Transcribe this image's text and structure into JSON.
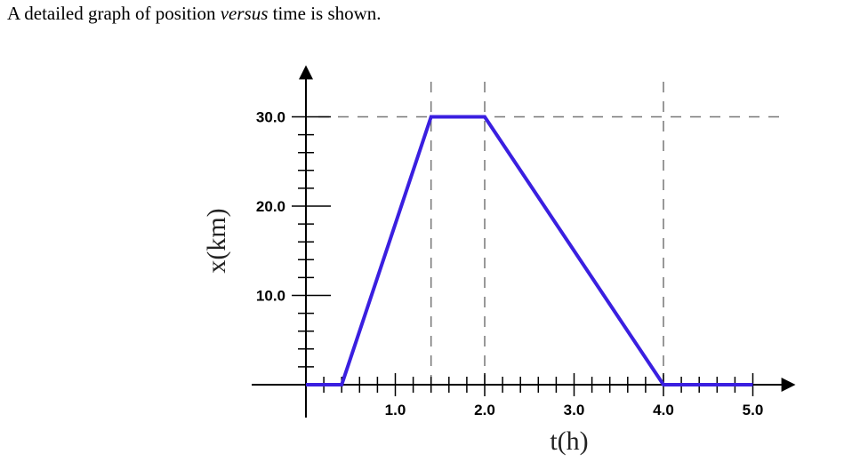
{
  "caption": {
    "text_before": "A detailed graph of position ",
    "text_italic": "versus",
    "text_after": " time is shown."
  },
  "chart_data": {
    "type": "line",
    "title": "",
    "xlabel": "t(h)",
    "ylabel": "x(km)",
    "xlim": [
      0,
      5.4
    ],
    "ylim": [
      0,
      35
    ],
    "x_ticks": [
      "1.0",
      "2.0",
      "3.0",
      "4.0",
      "5.0"
    ],
    "y_ticks": [
      "10.0",
      "20.0",
      "30.0"
    ],
    "grid": false,
    "legend": "none",
    "series": [
      {
        "color": "#3a1fe0",
        "points": [
          [
            0,
            0
          ],
          [
            0.4,
            0
          ],
          [
            1.4,
            30
          ],
          [
            2.0,
            30
          ],
          [
            4.0,
            0
          ],
          [
            5.0,
            0
          ]
        ]
      }
    ],
    "reference_lines": {
      "vertical_x": [
        1.4,
        2.0,
        4.0
      ],
      "horizontal_y": [
        30
      ]
    }
  }
}
